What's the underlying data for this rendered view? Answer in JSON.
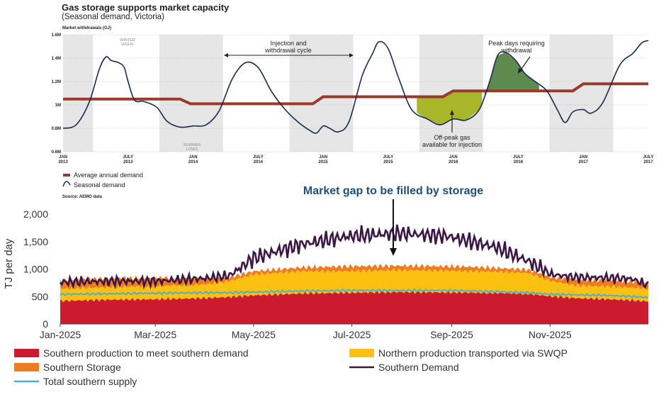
{
  "chart_data": [
    {
      "type": "line",
      "title": "Gas storage supports market capacity",
      "subtitle": "(Seasonal demand, Victoria)",
      "ylabel": "Market withdrawals (GJ)",
      "source": "Source: AEMO data",
      "ylim": [
        600000,
        1600000
      ],
      "y_ticks": [
        "0.6M",
        "0.8M",
        "1M",
        "1.2M",
        "1.4M",
        "1.6M"
      ],
      "x_ticks": [
        {
          "t": 0,
          "l1": "JAN",
          "l2": "2013"
        },
        {
          "t": 0.5,
          "l1": "JULY",
          "l2": "2013"
        },
        {
          "t": 1,
          "l1": "JAN",
          "l2": "2014"
        },
        {
          "t": 1.5,
          "l1": "JULY",
          "l2": "2014"
        },
        {
          "t": 2,
          "l1": "JAN",
          "l2": "2015"
        },
        {
          "t": 2.5,
          "l1": "JULY",
          "l2": "2015"
        },
        {
          "t": 3,
          "l1": "JAN",
          "l2": "2016"
        },
        {
          "t": 3.5,
          "l1": "JULY",
          "l2": "2016"
        },
        {
          "t": 4,
          "l1": "JAN",
          "l2": "2017"
        },
        {
          "t": 4.5,
          "l1": "JULY",
          "l2": "2017"
        }
      ],
      "shaded_bands_years": [
        [
          0,
          0.23
        ],
        [
          0.74,
          1.23
        ],
        [
          1.74,
          2.23
        ],
        [
          2.74,
          3.23
        ],
        [
          3.74,
          4.23
        ]
      ],
      "series": [
        {
          "name": "Average annual demand",
          "color": "#9b3a2c",
          "steps": [
            [
              0,
              1050000
            ],
            [
              0.9,
              1050000
            ],
            [
              0.98,
              1010000
            ],
            [
              1.92,
              1010000
            ],
            [
              2,
              1070000
            ],
            [
              2.92,
              1070000
            ],
            [
              3,
              1120000
            ],
            [
              3.92,
              1120000
            ],
            [
              4,
              1180000
            ],
            [
              4.5,
              1180000
            ]
          ]
        },
        {
          "name": "Seasonal demand",
          "color": "#1b2a4a",
          "points": [
            [
              0,
              800000
            ],
            [
              0.1,
              830000
            ],
            [
              0.2,
              1020000
            ],
            [
              0.28,
              1310000
            ],
            [
              0.33,
              1410000
            ],
            [
              0.37,
              1380000
            ],
            [
              0.43,
              1360000
            ],
            [
              0.47,
              1320000
            ],
            [
              0.5,
              1200000
            ],
            [
              0.55,
              1040000
            ],
            [
              0.62,
              1030000
            ],
            [
              0.72,
              980000
            ],
            [
              0.8,
              860000
            ],
            [
              0.9,
              810000
            ],
            [
              1,
              820000
            ],
            [
              1.1,
              830000
            ],
            [
              1.2,
              950000
            ],
            [
              1.3,
              1220000
            ],
            [
              1.4,
              1360000
            ],
            [
              1.5,
              1320000
            ],
            [
              1.6,
              1120000
            ],
            [
              1.7,
              970000
            ],
            [
              1.8,
              860000
            ],
            [
              1.9,
              780000
            ],
            [
              1.95,
              760000
            ],
            [
              2.0,
              820000
            ],
            [
              2.05,
              800000
            ],
            [
              2.12,
              770000
            ],
            [
              2.2,
              860000
            ],
            [
              2.3,
              1250000
            ],
            [
              2.38,
              1440000
            ],
            [
              2.43,
              1540000
            ],
            [
              2.5,
              1480000
            ],
            [
              2.58,
              1230000
            ],
            [
              2.68,
              960000
            ],
            [
              2.8,
              880000
            ],
            [
              2.9,
              830000
            ],
            [
              3,
              880000
            ],
            [
              3.1,
              870000
            ],
            [
              3.2,
              960000
            ],
            [
              3.28,
              1200000
            ],
            [
              3.34,
              1420000
            ],
            [
              3.4,
              1450000
            ],
            [
              3.48,
              1380000
            ],
            [
              3.55,
              1270000
            ],
            [
              3.63,
              1200000
            ],
            [
              3.72,
              1120000
            ],
            [
              3.8,
              960000
            ],
            [
              3.86,
              850000
            ],
            [
              3.92,
              940000
            ],
            [
              4.0,
              960000
            ],
            [
              4.06,
              930000
            ],
            [
              4.15,
              1020000
            ],
            [
              4.28,
              1340000
            ],
            [
              4.38,
              1440000
            ],
            [
              4.45,
              1530000
            ],
            [
              4.5,
              1550000
            ]
          ]
        }
      ],
      "annotations": [
        {
          "text": "Injection and",
          "text2": "withdrawal cycle"
        },
        {
          "text": "Peak days requiring",
          "text2": "withdrawal"
        },
        {
          "text": "Off-peak gas",
          "text2": "available for injection"
        },
        {
          "text": "WINTER",
          "text2": "HIGHS"
        },
        {
          "text": "SUMMER",
          "text2": "LOWS"
        }
      ],
      "fills": {
        "off_peak_color": "#a8b62a",
        "peak_color": "#5e8a50"
      }
    },
    {
      "type": "area",
      "title": "Market gap to be filled by storage",
      "ylabel": "TJ per day",
      "ylim": [
        0,
        2000
      ],
      "y_ticks": [
        "0",
        "500",
        "1,000",
        "1,500",
        "2,000"
      ],
      "x_ticks": [
        "Jan-2025",
        "Mar-2025",
        "May-2025",
        "Jul-2025",
        "Sep-2025",
        "Nov-2025"
      ],
      "x_tick_days": [
        0,
        59,
        120,
        181,
        243,
        304
      ],
      "days": 365,
      "envelope_days": [
        0,
        30,
        60,
        90,
        105,
        120,
        150,
        180,
        210,
        240,
        255,
        270,
        290,
        305,
        320,
        340,
        355,
        365
      ],
      "southern_production": [
        420,
        440,
        450,
        470,
        490,
        520,
        555,
        570,
        580,
        575,
        570,
        565,
        550,
        500,
        470,
        450,
        430,
        410
      ],
      "northern_production_top": [
        640,
        670,
        690,
        720,
        780,
        900,
        960,
        960,
        980,
        970,
        960,
        950,
        930,
        780,
        700,
        680,
        660,
        640
      ],
      "southern_storage_top": [
        800,
        830,
        840,
        830,
        850,
        960,
        1030,
        1050,
        1060,
        1050,
        1040,
        1020,
        990,
        850,
        800,
        790,
        770,
        750
      ],
      "demand": [
        760,
        780,
        780,
        830,
        880,
        1200,
        1450,
        1600,
        1650,
        1600,
        1500,
        1400,
        1150,
        900,
        850,
        840,
        820,
        700
      ],
      "total_southern_supply": [
        540,
        550,
        560,
        570,
        570,
        580,
        600,
        610,
        610,
        610,
        600,
        590,
        570,
        540,
        530,
        520,
        500,
        480
      ],
      "legend": [
        {
          "name": "Southern production to meet southern demand",
          "color": "#cc1a2f",
          "kind": "box"
        },
        {
          "name": "Northern production transported via SWQP",
          "color": "#fcc010",
          "kind": "box"
        },
        {
          "name": "Southern Storage",
          "color": "#f07c22",
          "kind": "box"
        },
        {
          "name": "Southern Demand",
          "color": "#3a1745",
          "kind": "line"
        },
        {
          "name": "Total southern supply",
          "color": "#4ab0d0",
          "kind": "line"
        }
      ]
    }
  ]
}
